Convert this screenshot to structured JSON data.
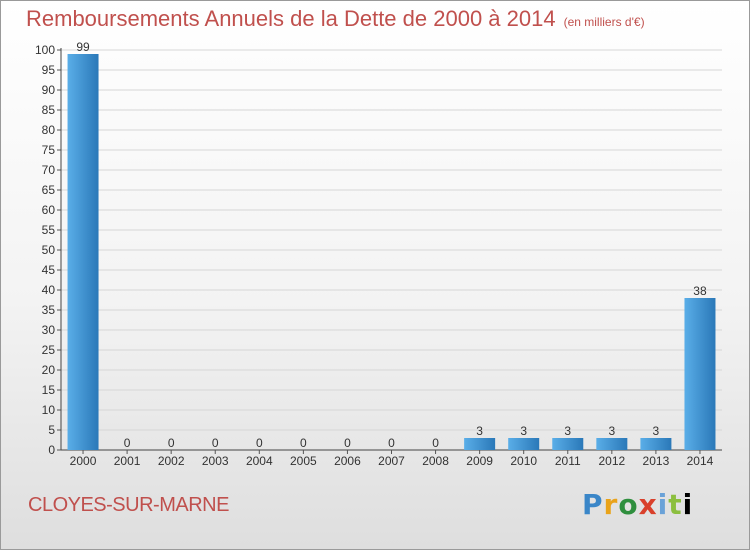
{
  "chart_data": {
    "type": "bar",
    "title": "Remboursements Annuels de la Dette de 2000 à 2014",
    "unit_label": "(en milliers d'€)",
    "categories": [
      "2000",
      "2001",
      "2002",
      "2003",
      "2004",
      "2005",
      "2006",
      "2007",
      "2008",
      "2009",
      "2010",
      "2011",
      "2012",
      "2013",
      "2014"
    ],
    "values": [
      99,
      0,
      0,
      0,
      0,
      0,
      0,
      0,
      0,
      3,
      3,
      3,
      3,
      3,
      38
    ],
    "ylim": [
      0,
      100
    ],
    "yticks": [
      0,
      5,
      10,
      15,
      20,
      25,
      30,
      35,
      40,
      45,
      50,
      55,
      60,
      65,
      70,
      75,
      80,
      85,
      90,
      95,
      100
    ],
    "grid": "horizontal",
    "xlabel": "",
    "ylabel": ""
  },
  "footer": {
    "city": "CLOYES-SUR-MARNE",
    "logo": [
      "P",
      "r",
      "o",
      "x",
      "i",
      "t",
      "i"
    ]
  },
  "colors": {
    "title": "#c0504d",
    "bar_light": "#5aaee8",
    "bar_dark": "#2a78b8"
  }
}
